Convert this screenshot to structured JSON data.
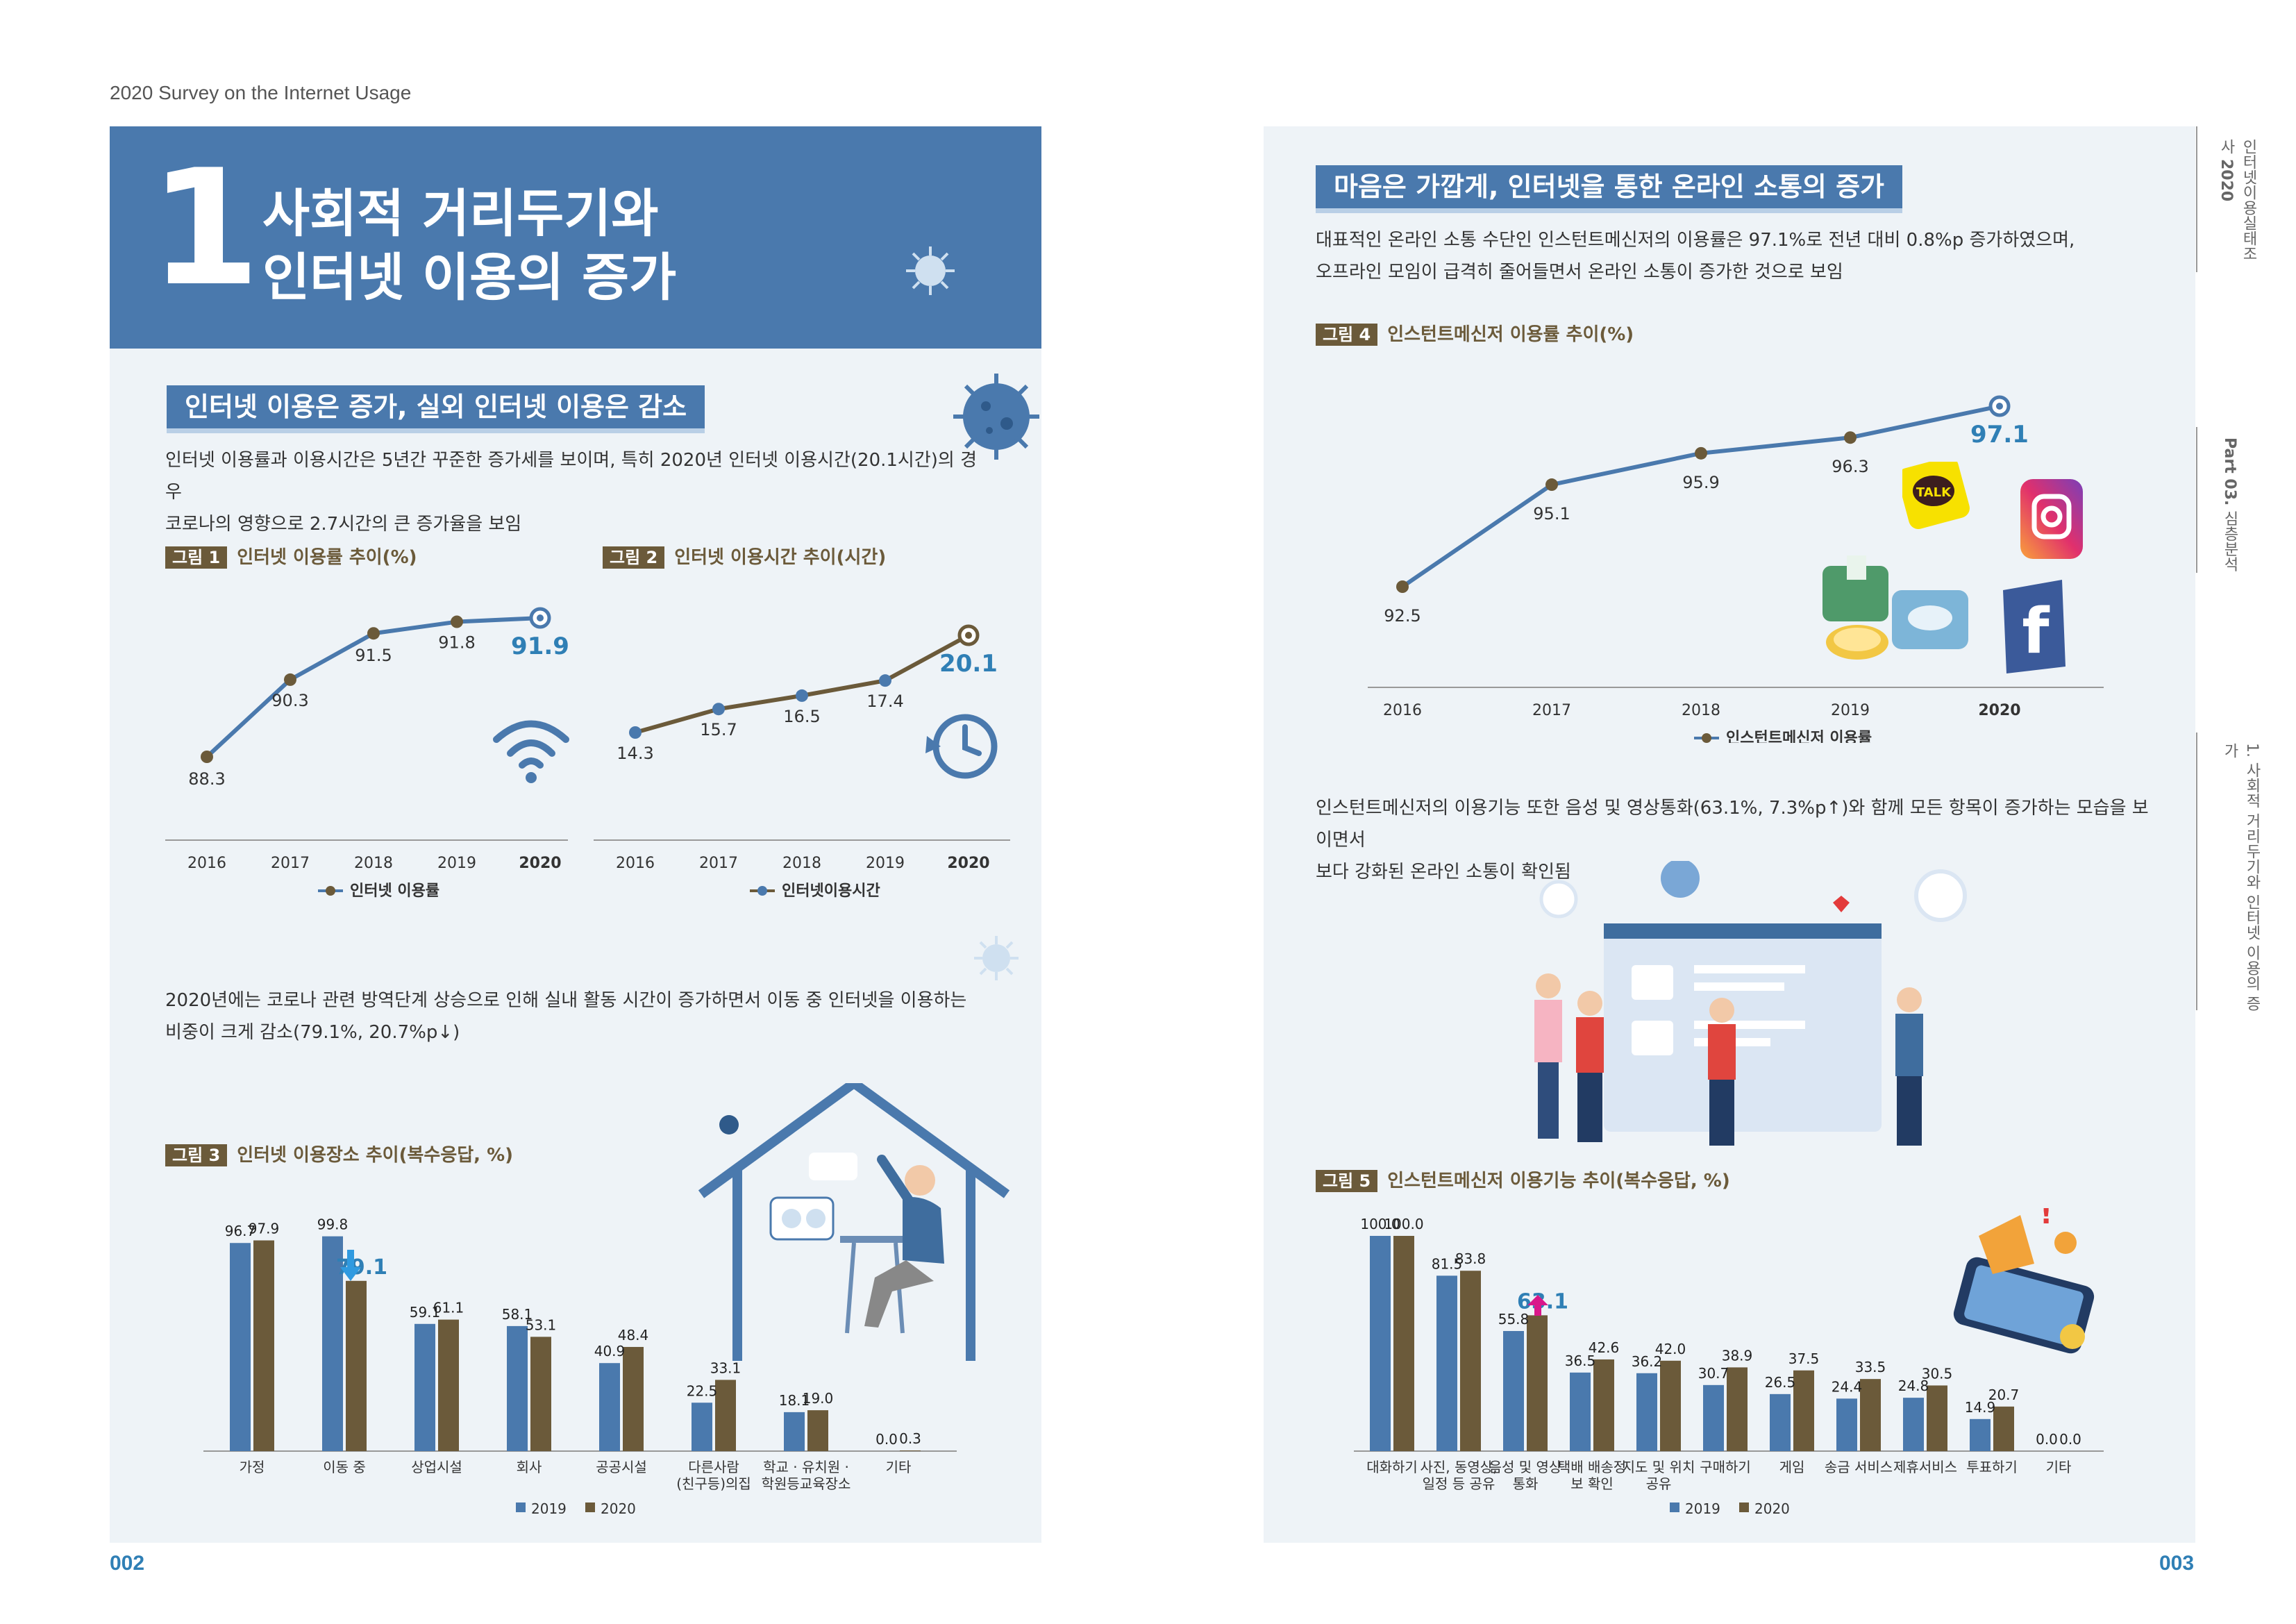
{
  "running_header": "2020 Survey on the Internet Usage",
  "left": {
    "section_number": "1",
    "title_line1": "사회적 거리두기와",
    "title_line2": "인터넷 이용의 증가",
    "sub1": "인터넷 이용은 증가, 실외 인터넷 이용은 감소",
    "para1_line1": "인터넷 이용률과 이용시간은 5년간 꾸준한 증가세를 보이며, 특히 2020년 인터넷 이용시간(20.1시간)의 경우",
    "para1_line2": "코로나의 영향으로 2.7시간의 큰 증가율을 보임",
    "para2_line1": "2020년에는 코로나 관련 방역단계 상승으로 인해 실내 활동 시간이 증가하면서 이동 중 인터넷을 이용하는",
    "para2_line2": "비중이 크게 감소(79.1%, 20.7%p↓)",
    "page_number": "002"
  },
  "right": {
    "sub2": "마음은 가깝게, 인터넷을 통한 온라인 소통의 증가",
    "para3_line1": "대표적인 온라인 소통 수단인 인스턴트메신저의 이용률은 97.1%로 전년 대비 0.8%p 증가하였으며,",
    "para3_line2": "오프라인 모임이 급격히 줄어들면서 온라인 소통이 증가한 것으로 보임",
    "para4_line1": "인스턴트메신저의 이용기능 또한 음성 및 영상통화(63.1%, 7.3%p↑)와 함께 모든 항목이 증가하는 모습을 보이면서",
    "para4_line2": "보다 강화된 온라인 소통이 확인됨",
    "page_number": "003",
    "side_tab1a": "인터넷이용실태조사",
    "side_tab1b": "2020",
    "side_tab2a": "Part 03.",
    "side_tab2b": "심층분석",
    "side_tab3": "1. 사회적 거리두기와 인터넷 이용의 증가"
  },
  "fig_tag": [
    "그림 1",
    "그림 2",
    "그림 3",
    "그림 4",
    "그림 5"
  ],
  "chart_data": [
    {
      "type": "line",
      "tag": "그림 1",
      "title": "인터넷 이용률 추이(%)",
      "x": [
        "2016",
        "2017",
        "2018",
        "2019",
        "2020"
      ],
      "series": [
        {
          "name": "인터넷 이용률",
          "values": [
            88.3,
            90.3,
            91.5,
            91.8,
            91.9
          ]
        }
      ]
    },
    {
      "type": "line",
      "tag": "그림 2",
      "title": "인터넷 이용시간 추이(시간)",
      "x": [
        "2016",
        "2017",
        "2018",
        "2019",
        "2020"
      ],
      "series": [
        {
          "name": "인터넷이용시간",
          "values": [
            14.3,
            15.7,
            16.5,
            17.4,
            20.1
          ]
        }
      ]
    },
    {
      "type": "bar",
      "tag": "그림 3",
      "title": "인터넷 이용장소 추이(복수응답, %)",
      "categories": [
        "가정",
        "이동 중",
        "상업시설",
        "회사",
        "공공시설",
        "다른사람(친구등)의집",
        "학교 · 유치원 · 학원등교육장소",
        "기타"
      ],
      "category_lines": [
        [
          "가정"
        ],
        [
          "이동 중"
        ],
        [
          "상업시설"
        ],
        [
          "회사"
        ],
        [
          "공공시설"
        ],
        [
          "다른사람",
          "(친구등)의집"
        ],
        [
          "학교 · 유치원 ·",
          "학원등교육장소"
        ],
        [
          "기타"
        ]
      ],
      "series": [
        {
          "name": "2019",
          "values": [
            96.7,
            99.8,
            59.1,
            58.1,
            40.9,
            22.5,
            18.1,
            0.0
          ]
        },
        {
          "name": "2020",
          "values": [
            97.9,
            79.1,
            61.1,
            53.1,
            48.4,
            33.1,
            19.0,
            0.3
          ]
        }
      ]
    },
    {
      "type": "line",
      "tag": "그림 4",
      "title": "인스턴트메신저 이용률 추이(%)",
      "x": [
        "2016",
        "2017",
        "2018",
        "2019",
        "2020"
      ],
      "series": [
        {
          "name": "인스턴트메신저 이용률",
          "values": [
            92.5,
            95.1,
            95.9,
            96.3,
            97.1
          ]
        }
      ]
    },
    {
      "type": "bar",
      "tag": "그림 5",
      "title": "인스턴트메신저 이용기능 추이(복수응답, %)",
      "categories": [
        "대화하기",
        "사진, 동영상, 일정 등 공유",
        "음성 및 영상통화",
        "택배 배송정보 확인",
        "지도 및 위치 공유",
        "구매하기",
        "게임",
        "송금 서비스",
        "제휴서비스",
        "투표하기",
        "기타"
      ],
      "category_lines": [
        [
          "대화하기"
        ],
        [
          "사진, 동영상,",
          "일정 등 공유"
        ],
        [
          "음성 및 영상",
          "통화"
        ],
        [
          "택배 배송정",
          "보 확인"
        ],
        [
          "지도 및 위치",
          "공유"
        ],
        [
          "구매하기"
        ],
        [
          "게임"
        ],
        [
          "송금 서비스"
        ],
        [
          "제휴서비스"
        ],
        [
          "투표하기"
        ],
        [
          "기타"
        ]
      ],
      "series": [
        {
          "name": "2019",
          "values": [
            100.0,
            81.5,
            55.8,
            36.5,
            36.2,
            30.7,
            26.5,
            24.4,
            24.8,
            14.9,
            0.0
          ]
        },
        {
          "name": "2020",
          "values": [
            100.0,
            83.8,
            63.1,
            42.6,
            42.0,
            38.9,
            37.5,
            33.5,
            30.5,
            20.7,
            0.0
          ]
        }
      ]
    }
  ],
  "colors": {
    "blue": "#4a79ad",
    "brown": "#6b5a3a",
    "accent": "#2f7fb5",
    "bg": "#eef3f7"
  }
}
